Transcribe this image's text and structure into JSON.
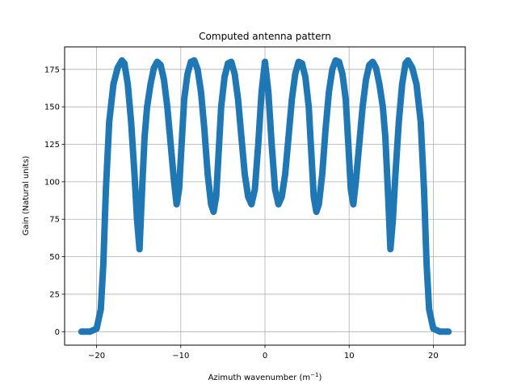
{
  "chart_data": {
    "type": "line",
    "title": "Computed antenna pattern",
    "xlabel_main": "Azimuth wavenumber (m",
    "xlabel_sup": "−1",
    "xlabel_end": ")",
    "ylabel": "Gain (Natural units)",
    "xlim": [
      -23.8,
      23.8
    ],
    "ylim": [
      -9,
      190
    ],
    "xticks": [
      -20,
      -10,
      0,
      10,
      20
    ],
    "xtick_labels": [
      "−20",
      "−10",
      "0",
      "10",
      "20"
    ],
    "yticks": [
      0,
      25,
      50,
      75,
      100,
      125,
      150,
      175
    ],
    "ytick_labels": [
      "0",
      "25",
      "50",
      "75",
      "100",
      "125",
      "150",
      "175"
    ],
    "grid": true,
    "series": [
      {
        "color": "#1f77b4",
        "x": [
          -21.8,
          -20.8,
          -20.0,
          -19.5,
          -19.2,
          -18.9,
          -18.5,
          -18.0,
          -17.5,
          -17.0,
          -16.7,
          -16.3,
          -15.9,
          -15.5,
          -15.2,
          -14.9,
          -14.6,
          -14.3,
          -14.0,
          -13.6,
          -13.2,
          -12.8,
          -12.4,
          -12.0,
          -11.6,
          -11.2,
          -10.8,
          -10.5,
          -10.2,
          -9.9,
          -9.6,
          -9.2,
          -8.8,
          -8.4,
          -8.0,
          -7.6,
          -7.2,
          -6.8,
          -6.4,
          -6.1,
          -5.8,
          -5.5,
          -5.2,
          -4.8,
          -4.4,
          -4.0,
          -3.6,
          -3.2,
          -2.8,
          -2.4,
          -2.0,
          -1.6,
          -1.2,
          -0.8,
          -0.4,
          0.0,
          0.4,
          0.8,
          1.2,
          1.6,
          2.0,
          2.4,
          2.8,
          3.2,
          3.6,
          4.0,
          4.4,
          4.8,
          5.2,
          5.5,
          5.8,
          6.1,
          6.4,
          6.8,
          7.2,
          7.6,
          8.0,
          8.4,
          8.8,
          9.2,
          9.6,
          9.9,
          10.2,
          10.5,
          10.8,
          11.2,
          11.6,
          12.0,
          12.4,
          12.8,
          13.2,
          13.6,
          14.0,
          14.3,
          14.6,
          14.9,
          15.2,
          15.5,
          15.9,
          16.3,
          16.7,
          17.0,
          17.5,
          18.0,
          18.5,
          18.9,
          19.2,
          19.5,
          20.0,
          20.8,
          21.8
        ],
        "y": [
          0,
          0,
          2,
          15,
          45,
          95,
          140,
          165,
          176,
          181,
          179,
          165,
          140,
          105,
          75,
          55,
          95,
          130,
          150,
          165,
          176,
          180,
          178,
          168,
          150,
          125,
          100,
          85,
          95,
          125,
          155,
          172,
          180,
          181,
          175,
          160,
          135,
          105,
          85,
          80,
          90,
          120,
          150,
          170,
          179,
          180,
          172,
          155,
          130,
          105,
          90,
          85,
          95,
          125,
          160,
          180,
          160,
          125,
          95,
          85,
          90,
          105,
          130,
          155,
          172,
          180,
          179,
          170,
          150,
          120,
          90,
          80,
          85,
          105,
          135,
          160,
          175,
          181,
          180,
          172,
          155,
          125,
          95,
          85,
          100,
          125,
          150,
          168,
          178,
          180,
          176,
          165,
          150,
          130,
          95,
          55,
          75,
          105,
          140,
          165,
          179,
          181,
          176,
          165,
          140,
          95,
          45,
          15,
          2,
          0,
          0
        ]
      }
    ]
  }
}
